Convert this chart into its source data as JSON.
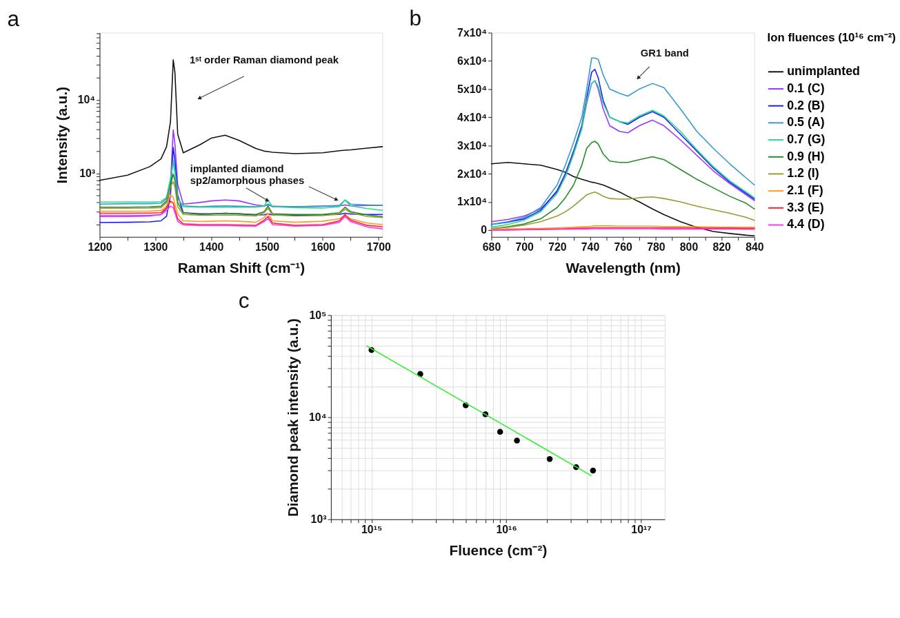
{
  "chart_data": [
    {
      "type": "line",
      "title": "a",
      "xlabel": "Raman Shift (cm⁻¹)",
      "ylabel": "Intensity (a.u.)",
      "log": "y",
      "legend": false,
      "grid": false,
      "marker": "none",
      "line_style": "solid",
      "x": [
        1200,
        1250,
        1290,
        1310,
        1320,
        1327,
        1332,
        1335,
        1340,
        1350,
        1380,
        1400,
        1425,
        1450,
        1480,
        1495,
        1502,
        1510,
        1550,
        1600,
        1630,
        1640,
        1650,
        1680,
        1707
      ],
      "xlim": [
        1200,
        1707
      ],
      "xticks": [
        1200,
        {
          "value": 1250,
          "label": null
        },
        1300,
        {
          "value": 1350,
          "label": null
        },
        1400,
        {
          "value": 1450,
          "label": null
        },
        1500,
        {
          "value": 1550,
          "label": null
        },
        1600,
        {
          "value": 1650,
          "label": null
        },
        1700
      ],
      "ylim": [
        136,
        82000
      ],
      "yticks": [
        {
          "value": 200,
          "label": null
        },
        {
          "value": 300,
          "label": null
        },
        {
          "value": 400,
          "label": null
        },
        {
          "value": 500,
          "label": null
        },
        {
          "value": 600,
          "label": null
        },
        {
          "value": 700,
          "label": null
        },
        {
          "value": 800,
          "label": null
        },
        {
          "value": 900,
          "label": null
        },
        {
          "value": 1000,
          "label": "10³"
        },
        {
          "value": 2000,
          "label": null
        },
        {
          "value": 3000,
          "label": null
        },
        {
          "value": 4000,
          "label": null
        },
        {
          "value": 5000,
          "label": null
        },
        {
          "value": 6000,
          "label": null
        },
        {
          "value": 7000,
          "label": null
        },
        {
          "value": 8000,
          "label": null
        },
        {
          "value": 9000,
          "label": null
        },
        {
          "value": 10000,
          "label": "10⁴"
        },
        {
          "value": 20000,
          "label": null
        },
        {
          "value": 30000,
          "label": null
        },
        {
          "value": 40000,
          "label": null
        },
        {
          "value": 50000,
          "label": null
        },
        {
          "value": 60000,
          "label": null
        },
        {
          "value": 70000,
          "label": null
        },
        {
          "value": 80000,
          "label": null
        }
      ],
      "annotations": [
        "1ˢᵗ order Raman diamond peak",
        "implanted diamond",
        {
          "text": "sp2/amorphous phases",
          "x": 1500,
          "y": 430
        }
      ],
      "series": [
        {
          "color": "#111111",
          "values": [
            800,
            940,
            1230,
            1570,
            2300,
            5000,
            35000,
            23600,
            3400,
            1900,
            2450,
            3000,
            3300,
            2800,
            2170,
            2000,
            1970,
            1930,
            1850,
            1900,
            2030,
            2060,
            2080,
            2200,
            2300
          ]
        },
        {
          "color": "#9933ff",
          "values": [
            258,
            258,
            262,
            275,
            330,
            700,
            3900,
            2500,
            700,
            380,
            400,
            420,
            433,
            420,
            370,
            360,
            370,
            355,
            350,
            357,
            360,
            370,
            360,
            365,
            365
          ]
        },
        {
          "color": "#1a1aff",
          "values": [
            213,
            215,
            218,
            225,
            260,
            500,
            2240,
            1500,
            500,
            290,
            280,
            280,
            285,
            280,
            270,
            272,
            280,
            270,
            268,
            272,
            275,
            285,
            278,
            275,
            275
          ]
        },
        {
          "color": "#3399cc",
          "values": [
            380,
            385,
            385,
            390,
            450,
            800,
            1500,
            1100,
            450,
            360,
            350,
            355,
            360,
            355,
            350,
            355,
            380,
            350,
            350,
            355,
            365,
            433,
            380,
            370,
            365
          ]
        },
        {
          "color": "#22dd88",
          "values": [
            405,
            405,
            405,
            410,
            470,
            850,
            1400,
            1000,
            450,
            350,
            345,
            345,
            345,
            345,
            345,
            360,
            433,
            350,
            340,
            335,
            350,
            433,
            360,
            330,
            313
          ]
        },
        {
          "color": "#228b22",
          "values": [
            345,
            345,
            348,
            355,
            420,
            700,
            970,
            800,
            400,
            290,
            275,
            278,
            285,
            280,
            275,
            300,
            357,
            280,
            275,
            275,
            290,
            345,
            300,
            270,
            258
          ]
        },
        {
          "color": "#999933",
          "values": [
            334,
            334,
            336,
            340,
            400,
            650,
            772,
            650,
            350,
            275,
            267,
            267,
            270,
            268,
            262,
            290,
            334,
            270,
            262,
            265,
            280,
            324,
            290,
            258,
            250
          ]
        },
        {
          "color": "#ff9922",
          "values": [
            304,
            304,
            306,
            312,
            360,
            508,
            470,
            380,
            280,
            225,
            220,
            222,
            225,
            222,
            215,
            250,
            285,
            225,
            215,
            222,
            240,
            267,
            240,
            210,
            200
          ]
        },
        {
          "color": "#ff2222",
          "values": [
            285,
            285,
            287,
            290,
            340,
            418,
            390,
            320,
            240,
            205,
            200,
            200,
            200,
            198,
            195,
            230,
            258,
            210,
            195,
            200,
            225,
            275,
            230,
            195,
            187
          ]
        },
        {
          "color": "#ff33ff",
          "values": [
            267,
            267,
            268,
            272,
            310,
            357,
            340,
            290,
            220,
            198,
            194,
            194,
            195,
            192,
            190,
            220,
            242,
            200,
            190,
            195,
            215,
            258,
            220,
            185,
            175
          ]
        }
      ]
    },
    {
      "type": "line",
      "title": "b",
      "xlabel": "Wavelength (nm)",
      "legend": "right",
      "legend_title": "Ion fluences (10¹⁶ cm⁻²)",
      "grid": false,
      "marker": "none",
      "line_style": "solid",
      "x": [
        680,
        690,
        700,
        710,
        720,
        725,
        730,
        735,
        738,
        741,
        743,
        745,
        748,
        752,
        758,
        763,
        770,
        778,
        785,
        795,
        805,
        815,
        825,
        835,
        840
      ],
      "xlim": [
        680,
        840
      ],
      "xticks": [
        680,
        {
          "value": 690,
          "label": null
        },
        700,
        {
          "value": 710,
          "label": null
        },
        720,
        {
          "value": 730,
          "label": null
        },
        740,
        {
          "value": 750,
          "label": null
        },
        760,
        {
          "value": 770,
          "label": null
        },
        780,
        {
          "value": 790,
          "label": null
        },
        800,
        {
          "value": 810,
          "label": null
        },
        820,
        {
          "value": 830,
          "label": null
        },
        840
      ],
      "ylim": [
        -2400,
        70000
      ],
      "yticks": [
        0,
        {
          "value": 10000,
          "label": "1x10⁴"
        },
        {
          "value": 20000,
          "label": "2x10⁴"
        },
        {
          "value": 30000,
          "label": "3x10⁴"
        },
        {
          "value": 40000,
          "label": "4x10⁴"
        },
        {
          "value": 50000,
          "label": "5x10⁴"
        },
        {
          "value": 60000,
          "label": "6x10⁴"
        },
        {
          "value": 70000,
          "label": "7x10⁴"
        }
      ],
      "annotations": [
        "GR1 band"
      ],
      "series": [
        {
          "name": "unimplanted",
          "color": "#111111",
          "values": [
            23500,
            24000,
            23500,
            23000,
            21500,
            20500,
            19000,
            18000,
            17500,
            17000,
            16800,
            16500,
            16000,
            15000,
            13500,
            12000,
            10000,
            7500,
            5500,
            3000,
            1000,
            -500,
            -1200,
            -1800,
            -2000
          ]
        },
        {
          "name": "0.1 (C)",
          "color": "#9933ff",
          "values": [
            3000,
            3800,
            5000,
            7500,
            13500,
            19000,
            27000,
            36000,
            45000,
            52000,
            53000,
            50000,
            43000,
            37000,
            35000,
            34500,
            37000,
            39000,
            37000,
            32000,
            26500,
            21000,
            16500,
            12500,
            10500
          ]
        },
        {
          "name": "0.2 (B)",
          "color": "#1a1aff",
          "values": [
            2000,
            2800,
            4000,
            7000,
            14000,
            20000,
            28000,
            37000,
            47000,
            56000,
            57000,
            54000,
            46000,
            40000,
            38500,
            37500,
            40000,
            42000,
            40000,
            34000,
            28000,
            22000,
            17000,
            13000,
            11000
          ]
        },
        {
          "name": "0.5 (A)",
          "color": "#3399cc",
          "values": [
            2000,
            3000,
            4500,
            8000,
            16000,
            23000,
            31000,
            40000,
            50000,
            61000,
            61000,
            60500,
            55000,
            50000,
            48500,
            47500,
            50000,
            52000,
            50500,
            43000,
            35000,
            29000,
            23500,
            18500,
            16000
          ]
        },
        {
          "name": "0.7 (G)",
          "color": "#22dd88",
          "values": [
            1000,
            2000,
            3500,
            6500,
            13000,
            19000,
            27000,
            36000,
            46000,
            52000,
            53000,
            51000,
            45000,
            40000,
            38500,
            38000,
            40500,
            42500,
            40500,
            35000,
            28500,
            22500,
            17500,
            13500,
            11500
          ]
        },
        {
          "name": "0.9 (H)",
          "color": "#228b22",
          "values": [
            500,
            1200,
            2200,
            4000,
            8000,
            11500,
            16000,
            23000,
            29000,
            31000,
            31500,
            30500,
            27000,
            24500,
            24000,
            24000,
            25000,
            26000,
            25000,
            21500,
            18000,
            15000,
            12000,
            9500,
            7500
          ]
        },
        {
          "name": "1.2 (I)",
          "color": "#999933",
          "values": [
            500,
            1000,
            1800,
            3000,
            5000,
            6500,
            8500,
            11000,
            12500,
            13200,
            13500,
            13000,
            12000,
            11200,
            11000,
            11000,
            11500,
            11800,
            11200,
            10000,
            8500,
            7200,
            6000,
            4500,
            3500
          ]
        },
        {
          "name": "2.1 (F)",
          "color": "#ff9922",
          "values": [
            300,
            400,
            500,
            600,
            800,
            900,
            1000,
            1200,
            1300,
            1400,
            1500,
            1500,
            1500,
            1500,
            1400,
            1400,
            1400,
            1400,
            1300,
            1300,
            1200,
            1100,
            1000,
            1000,
            1000
          ]
        },
        {
          "name": "3.3 (E)",
          "color": "#ff2222",
          "values": [
            0,
            100,
            200,
            300,
            400,
            500,
            600,
            700,
            700,
            800,
            800,
            800,
            800,
            800,
            800,
            800,
            800,
            800,
            800,
            800,
            700,
            700,
            700,
            600,
            600
          ]
        },
        {
          "name": "4.4 (D)",
          "color": "#ff33ff",
          "values": [
            0,
            0,
            100,
            200,
            300,
            300,
            400,
            400,
            400,
            500,
            500,
            500,
            500,
            500,
            500,
            500,
            500,
            500,
            400,
            400,
            400,
            400,
            400,
            300,
            300
          ]
        }
      ]
    },
    {
      "type": "scatter",
      "title": "c",
      "xlabel": "Fluence (cm⁻²)",
      "ylabel": "Diamond peak intensity (a.u.)",
      "log": "xy",
      "legend": false,
      "grid": true,
      "marker": "circle",
      "xlim": [
        500000000000000.0,
        1.5e+17
      ],
      "xticks": [
        {
          "value": 500000000000000.0,
          "label": null
        },
        {
          "value": 600000000000000.0,
          "label": null
        },
        {
          "value": 700000000000000.0,
          "label": null
        },
        {
          "value": 800000000000000.0,
          "label": null
        },
        {
          "value": 900000000000000.0,
          "label": null
        },
        {
          "value": 1000000000000000.0,
          "label": "10¹⁵"
        },
        {
          "value": 2000000000000000.0,
          "label": null
        },
        {
          "value": 3000000000000000.0,
          "label": null
        },
        {
          "value": 4000000000000000.0,
          "label": null
        },
        {
          "value": 5000000000000000.0,
          "label": null
        },
        {
          "value": 6000000000000000.0,
          "label": null
        },
        {
          "value": 7000000000000000.0,
          "label": null
        },
        {
          "value": 8000000000000000.0,
          "label": null
        },
        {
          "value": 9000000000000000.0,
          "label": null
        },
        {
          "value": 1e+16,
          "label": "10¹⁶"
        },
        {
          "value": 2e+16,
          "label": null
        },
        {
          "value": 3e+16,
          "label": null
        },
        {
          "value": 4e+16,
          "label": null
        },
        {
          "value": 5e+16,
          "label": null
        },
        {
          "value": 6e+16,
          "label": null
        },
        {
          "value": 7e+16,
          "label": null
        },
        {
          "value": 8e+16,
          "label": null
        },
        {
          "value": 9e+16,
          "label": null
        },
        {
          "value": 1e+17,
          "label": "10¹⁷"
        }
      ],
      "ylim": [
        1000,
        100000
      ],
      "yticks": [
        {
          "value": 1000,
          "label": "10³"
        },
        {
          "value": 2000,
          "label": null
        },
        {
          "value": 3000,
          "label": null
        },
        {
          "value": 4000,
          "label": null
        },
        {
          "value": 5000,
          "label": null
        },
        {
          "value": 6000,
          "label": null
        },
        {
          "value": 7000,
          "label": null
        },
        {
          "value": 8000,
          "label": null
        },
        {
          "value": 9000,
          "label": null
        },
        {
          "value": 10000,
          "label": "10⁴"
        },
        {
          "value": 20000,
          "label": null
        },
        {
          "value": 30000,
          "label": null
        },
        {
          "value": 40000,
          "label": null
        },
        {
          "value": 50000,
          "label": null
        },
        {
          "value": 60000,
          "label": null
        },
        {
          "value": 70000,
          "label": null
        },
        {
          "value": 80000,
          "label": null
        },
        {
          "value": 90000,
          "label": null
        },
        {
          "value": 100000,
          "label": "10⁵"
        }
      ],
      "series": [
        {
          "type": "scatter",
          "color": "#000000",
          "x": [
            1000000000000000.0,
            2300000000000000.0,
            5000000000000000.0,
            7000000000000000.0,
            9000000000000000.0,
            1.2e+16,
            2.1e+16,
            3.3e+16,
            4.4e+16
          ],
          "values": [
            45500,
            26500,
            13100,
            10700,
            7200,
            5900,
            3900,
            3250,
            3000
          ]
        },
        {
          "type": "line",
          "marker": "none",
          "color": "#33ee33",
          "x": [
            920000000000000.0,
            4.27e+16
          ],
          "values": [
            50000,
            2680
          ]
        }
      ]
    }
  ]
}
